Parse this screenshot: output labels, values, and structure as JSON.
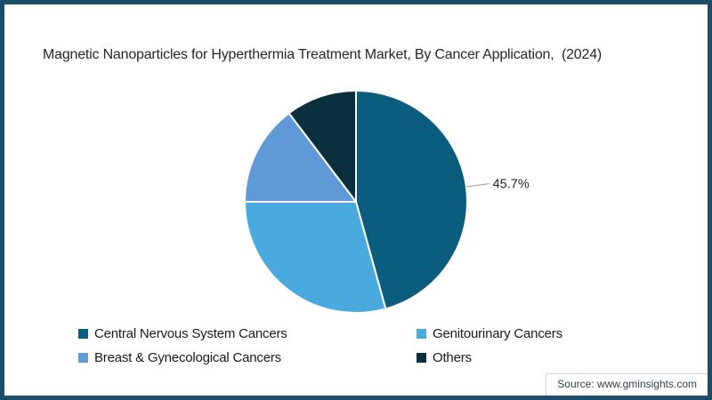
{
  "frame": {
    "border_color": "#1a4d68",
    "background_color": "#ffffff"
  },
  "header": {
    "title": "Magnetic Nanoparticles for Hyperthermia Treatment Market, By Cancer Application,  (2024)"
  },
  "chart_data": {
    "type": "pie",
    "title": "Magnetic Nanoparticles for Hyperthermia Treatment Market, By Cancer Application, (2024)",
    "legend_position": "bottom",
    "start_angle_deg": 0,
    "direction": "clockwise",
    "slice_separator_color": "#ffffff",
    "leader_line_color": "#999999",
    "data_label_color": "#262626",
    "slices": [
      {
        "name": "Central Nervous System Cancers",
        "value": 45.7,
        "color": "#0b5d7d",
        "label": "45.7%"
      },
      {
        "name": "Genitourinary Cancers",
        "value": 29.3,
        "color": "#4aaade",
        "label": null
      },
      {
        "name": "Breast & Gynecological Cancers",
        "value": 14.7,
        "color": "#5f99d8",
        "label": null
      },
      {
        "name": "Others",
        "value": 10.3,
        "color": "#0a2f3f",
        "label": null
      }
    ]
  },
  "footer": {
    "source": "Source: www.gminsights.com"
  }
}
